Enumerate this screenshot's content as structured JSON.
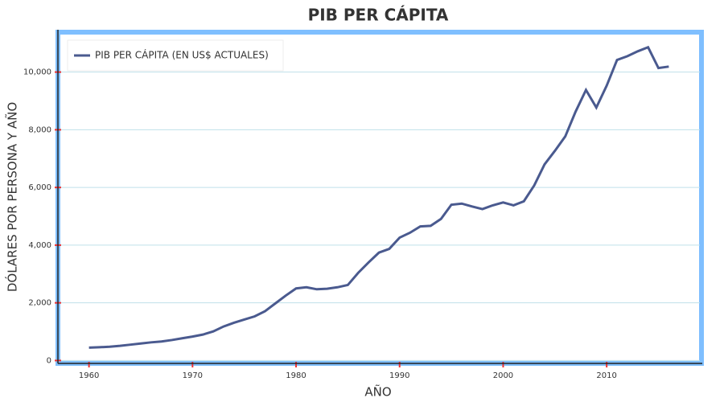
{
  "chart_data": {
    "type": "line",
    "title": "PIB PER CÁPITA",
    "x_label": "AÑO",
    "y_label": "DÓLARES POR PERSONA Y AÑO",
    "x": [
      1960,
      1961,
      1962,
      1963,
      1964,
      1965,
      1966,
      1967,
      1968,
      1969,
      1970,
      1971,
      1972,
      1973,
      1974,
      1975,
      1976,
      1977,
      1978,
      1979,
      1980,
      1981,
      1982,
      1983,
      1984,
      1985,
      1986,
      1987,
      1988,
      1989,
      1990,
      1991,
      1992,
      1993,
      1994,
      1995,
      1996,
      1997,
      1998,
      1999,
      2000,
      2001,
      2002,
      2003,
      2004,
      2005,
      2006,
      2007,
      2008,
      2009,
      2010,
      2011,
      2012,
      2013,
      2014,
      2015,
      2016
    ],
    "series": [
      {
        "name": "PIB PER CÁPITA (EN US$ ACTUALES)",
        "color": "#4a5a8f",
        "values": [
          446,
          460,
          480,
          510,
          550,
          590,
          630,
          660,
          710,
          770,
          830,
          900,
          1010,
          1180,
          1310,
          1420,
          1530,
          1710,
          1980,
          2250,
          2500,
          2540,
          2470,
          2490,
          2540,
          2620,
          3040,
          3400,
          3740,
          3870,
          4260,
          4430,
          4650,
          4670,
          4910,
          5400,
          5440,
          5340,
          5250,
          5380,
          5480,
          5380,
          5520,
          6070,
          6800,
          7270,
          7770,
          8630,
          9380,
          8770,
          9530,
          10420,
          10550,
          10720,
          10860,
          10140,
          10190
        ]
      }
    ],
    "xlim": [
      1957,
      2019
    ],
    "xticks": [
      1960,
      1970,
      1980,
      1990,
      2000,
      2010
    ],
    "ylim": [
      -100,
      11300
    ],
    "yticks": [
      0,
      {
        "value": 2000,
        "label": "2,000"
      },
      {
        "value": 4000,
        "label": "4,000"
      },
      {
        "value": 6000,
        "label": "6,000"
      },
      {
        "value": 8000,
        "label": "8,000"
      },
      {
        "value": 10000,
        "label": "10,000"
      }
    ],
    "grid": true,
    "legend": "top-left"
  }
}
